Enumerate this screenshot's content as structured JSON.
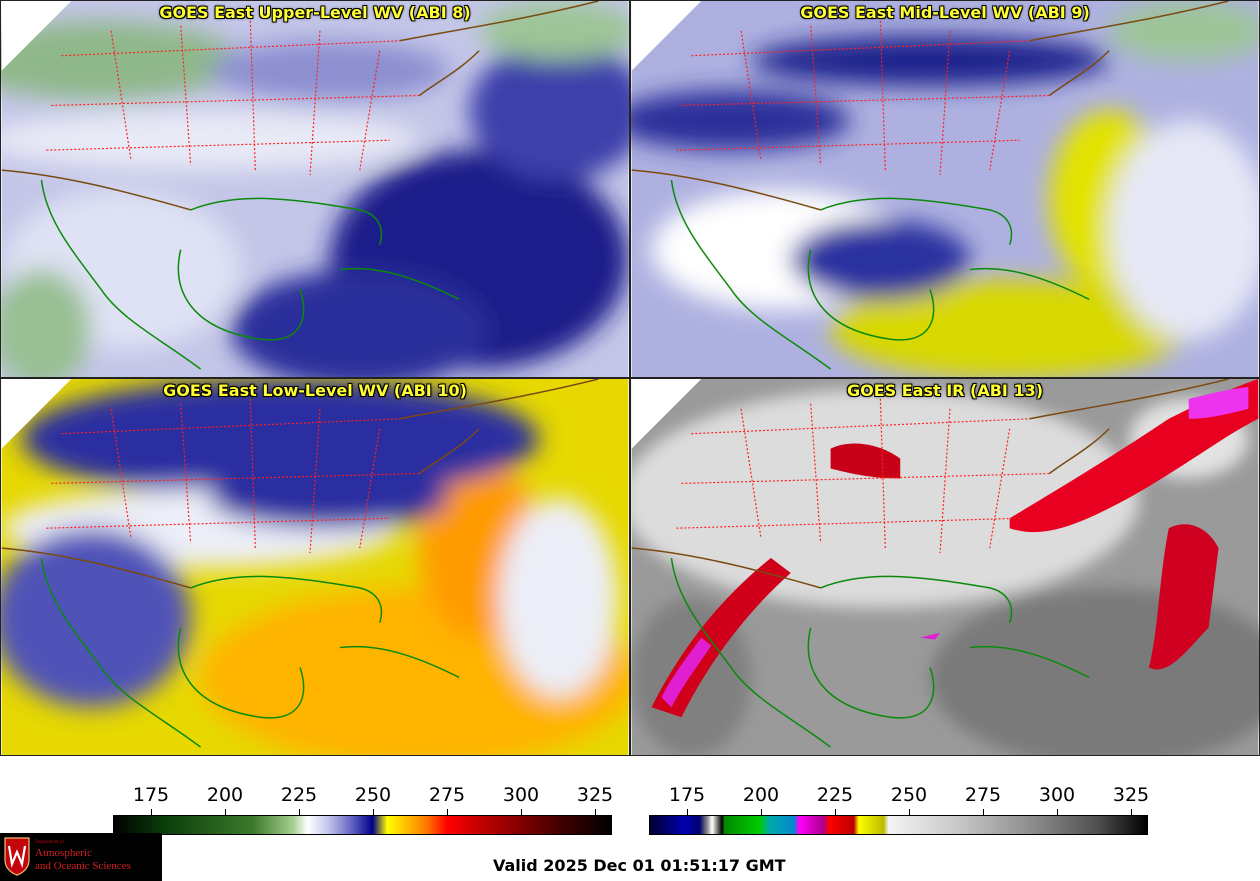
{
  "panels": [
    {
      "id": "p1",
      "title": "GOES East Upper-Level WV (ABI 8)",
      "palette": "wv_upper"
    },
    {
      "id": "p2",
      "title": "GOES East Mid-Level WV (ABI 9)",
      "palette": "wv_mid"
    },
    {
      "id": "p3",
      "title": "GOES East Low-Level WV (ABI 10)",
      "palette": "wv_low"
    },
    {
      "id": "p4",
      "title": "GOES East IR (ABI 13)",
      "palette": "ir"
    }
  ],
  "colorbars": {
    "wv": {
      "ticks": [
        "175",
        "200",
        "225",
        "250",
        "275",
        "300",
        "325"
      ]
    },
    "ir": {
      "ticks": [
        "175",
        "200",
        "225",
        "250",
        "275",
        "300",
        "325"
      ]
    }
  },
  "valid_time": "Valid 2025 Dec 01 01:51:17 GMT",
  "logo": {
    "department": "Department of",
    "line1": "Atmospheric",
    "line2": "and Oceanic Sciences",
    "icon": "uw-crest-icon"
  },
  "colors": {
    "title_text": "#ffff33",
    "state_borders": "#ff2020",
    "coastlines": "#0a8a0a",
    "country_borders": "#7a4a10"
  }
}
